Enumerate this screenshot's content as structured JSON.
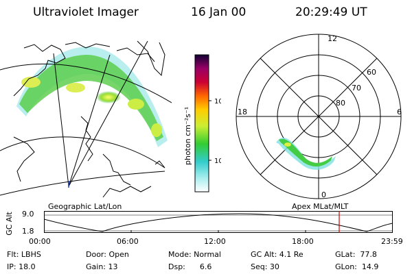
{
  "header": {
    "title": "Ultraviolet Imager",
    "date": "16 Jan 00",
    "time": "20:29:49 UT"
  },
  "colorbar": {
    "label": "photon cm⁻²s⁻¹",
    "ticks": [
      "100",
      "10"
    ]
  },
  "polar": {
    "mlt_labels": {
      "top": "12",
      "left": "18",
      "right": "6",
      "bottom": "0"
    },
    "lat_labels": [
      "60",
      "70",
      "80"
    ]
  },
  "panel_labels": {
    "left": "Geographic Lat/Lon",
    "right": "Apex MLat/MLT"
  },
  "timeline": {
    "axis_label": "GC Alt",
    "y_ticks": [
      "9.0",
      "1.8"
    ],
    "x_ticks": [
      "00:00",
      "06:00",
      "12:00",
      "18:00",
      "23:59"
    ]
  },
  "info": {
    "flt": "Flt: LBHS",
    "ip": "IP: 18.0",
    "door": "Door: Open",
    "gain": "Gain: 13",
    "mode": "Mode: Normal",
    "dsp": "Dsp:      6.6",
    "gcalt": "GC Alt: 4.1 Re",
    "seq": "Seq: 30",
    "glat": "GLat:  77.8",
    "glon": "GLon:  14.9"
  },
  "colors": {
    "marker": "#cc0000",
    "aurora_core": "#ffff33",
    "aurora_mid": "#33cc33",
    "aurora_edge": "#66dddd"
  }
}
